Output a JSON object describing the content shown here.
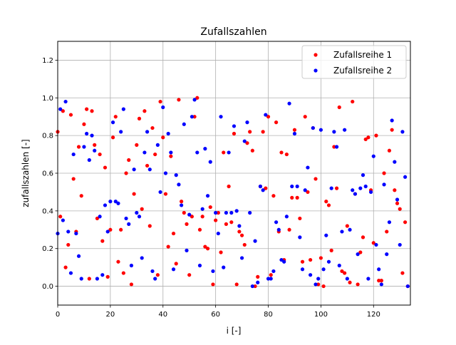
{
  "chart_data": {
    "type": "scatter",
    "title": "Zufallszahlen",
    "xlabel": "i [-]",
    "ylabel": "zufallszahlen [-]",
    "xlim": [
      0,
      134
    ],
    "ylim": [
      -0.1,
      1.3
    ],
    "xticks": [
      0,
      20,
      40,
      60,
      80,
      100,
      120
    ],
    "yticks": [
      0.0,
      0.2,
      0.4,
      0.6,
      0.8,
      1.0,
      1.2
    ],
    "xtick_labels": [
      "0",
      "20",
      "40",
      "60",
      "80",
      "100",
      "120"
    ],
    "ytick_labels": [
      "0.0",
      "0.2",
      "0.4",
      "0.6",
      "0.8",
      "1.0",
      "1.2"
    ],
    "grid": true,
    "legend_position": "top-right",
    "series": [
      {
        "name": "Zufallsreihe 1",
        "color": "#ff0000",
        "x": [
          0,
          1,
          2,
          3,
          4,
          5,
          6,
          7,
          8,
          9,
          10,
          11,
          12,
          13,
          14,
          15,
          16,
          17,
          18,
          19,
          20,
          21,
          22,
          23,
          24,
          25,
          26,
          27,
          28,
          29,
          30,
          31,
          32,
          33,
          34,
          35,
          36,
          37,
          38,
          39,
          40,
          41,
          42,
          43,
          44,
          45,
          46,
          47,
          48,
          49,
          50,
          51,
          52,
          53,
          54,
          55,
          56,
          57,
          58,
          59,
          60,
          61,
          62,
          63,
          64,
          65,
          66,
          67,
          68,
          69,
          70,
          71,
          72,
          73,
          74,
          75,
          76,
          77,
          78,
          79,
          80,
          81,
          82,
          83,
          84,
          85,
          86,
          87,
          88,
          89,
          90,
          91,
          92,
          93,
          94,
          95,
          96,
          97,
          98,
          99,
          100,
          101,
          102,
          103,
          104,
          105,
          106,
          107,
          108,
          109,
          110,
          111,
          112,
          113,
          114,
          115,
          116,
          117,
          118,
          119,
          120,
          121,
          122,
          123,
          124,
          125,
          126,
          127,
          128,
          129,
          130,
          131,
          132,
          133
        ],
        "y": [
          0.82,
          0.37,
          0.93,
          0.1,
          0.22,
          0.91,
          0.57,
          0.29,
          0.74,
          0.48,
          0.86,
          0.94,
          0.04,
          0.93,
          0.75,
          0.36,
          0.7,
          0.24,
          0.63,
          0.05,
          0.3,
          0.79,
          0.9,
          0.13,
          0.3,
          0.07,
          0.6,
          0.67,
          0.01,
          0.49,
          0.75,
          0.89,
          0.41,
          0.93,
          0.64,
          0.32,
          0.84,
          0.7,
          0.06,
          0.98,
          0.79,
          0.49,
          0.21,
          0.69,
          0.28,
          0.12,
          0.99,
          0.45,
          0.39,
          0.33,
          0.06,
          0.37,
          0.9,
          1.0,
          0.3,
          0.37,
          0.21,
          0.2,
          0.42,
          0.01,
          0.35,
          0.39,
          0.18,
          0.71,
          0.33,
          0.53,
          0.34,
          0.81,
          0.01,
          0.29,
          0.27,
          0.22,
          0.76,
          0.82,
          0.72,
          0.0,
          0.05,
          0.53,
          0.82,
          0.52,
          0.9,
          0.06,
          0.48,
          0.87,
          0.29,
          0.71,
          0.14,
          0.7,
          0.3,
          0.47,
          0.83,
          0.47,
          0.36,
          0.13,
          0.9,
          0.5,
          0.14,
          0.84,
          0.57,
          0.01,
          0.15,
          0.0,
          0.45,
          0.43,
          0.19,
          0.74,
          0.52,
          0.95,
          0.08,
          0.07,
          0.32,
          0.02,
          0.98,
          0.49,
          0.01,
          0.18,
          0.26,
          0.78,
          0.79,
          0.51,
          0.23,
          0.8,
          0.03,
          0.03,
          0.6,
          0.29,
          0.72,
          0.83,
          0.51,
          0.44,
          0.41,
          0.07,
          0.34,
          0.0
        ]
      },
      {
        "name": "Zufallsreihe 2",
        "color": "#0000ff",
        "x": [
          0,
          1,
          2,
          3,
          4,
          5,
          6,
          7,
          8,
          9,
          10,
          11,
          12,
          13,
          14,
          15,
          16,
          17,
          18,
          19,
          20,
          21,
          22,
          23,
          24,
          25,
          26,
          27,
          28,
          29,
          30,
          31,
          32,
          33,
          34,
          35,
          36,
          37,
          38,
          39,
          40,
          41,
          42,
          43,
          44,
          45,
          46,
          47,
          48,
          49,
          50,
          51,
          52,
          53,
          54,
          55,
          56,
          57,
          58,
          59,
          60,
          61,
          62,
          63,
          64,
          65,
          66,
          67,
          68,
          69,
          70,
          71,
          72,
          73,
          74,
          75,
          76,
          77,
          78,
          79,
          80,
          81,
          82,
          83,
          84,
          85,
          86,
          87,
          88,
          89,
          90,
          91,
          92,
          93,
          94,
          95,
          96,
          97,
          98,
          99,
          100,
          101,
          102,
          103,
          104,
          105,
          106,
          107,
          108,
          109,
          110,
          111,
          112,
          113,
          114,
          115,
          116,
          117,
          118,
          119,
          120,
          121,
          122,
          123,
          124,
          125,
          126,
          127,
          128,
          129,
          130,
          131,
          132,
          133
        ],
        "y": [
          0.28,
          0.94,
          0.35,
          0.98,
          0.29,
          0.07,
          0.7,
          0.28,
          0.16,
          0.04,
          0.74,
          0.81,
          0.67,
          0.8,
          0.72,
          0.04,
          0.37,
          0.06,
          0.43,
          0.29,
          0.45,
          0.87,
          0.45,
          0.44,
          0.82,
          0.94,
          0.36,
          0.33,
          0.11,
          0.62,
          0.39,
          0.37,
          0.15,
          0.71,
          0.82,
          0.62,
          0.08,
          0.04,
          0.75,
          0.5,
          0.95,
          0.6,
          0.81,
          0.71,
          0.09,
          0.59,
          0.54,
          0.43,
          0.86,
          0.19,
          0.38,
          0.9,
          0.99,
          0.71,
          0.11,
          0.41,
          0.73,
          0.48,
          0.66,
          0.08,
          0.39,
          0.28,
          0.9,
          0.1,
          0.39,
          0.71,
          0.39,
          0.85,
          0.4,
          0.32,
          0.15,
          0.77,
          0.87,
          0.39,
          0.0,
          0.24,
          0.02,
          0.53,
          0.51,
          0.91,
          0.04,
          0.04,
          0.08,
          0.34,
          0.3,
          0.14,
          0.13,
          0.37,
          0.97,
          0.53,
          0.81,
          0.53,
          0.26,
          0.09,
          0.51,
          0.63,
          0.06,
          0.84,
          0.01,
          0.04,
          0.83,
          0.09,
          0.27,
          0.13,
          0.52,
          0.82,
          0.74,
          0.11,
          0.29,
          0.83,
          0.04,
          0.3,
          0.51,
          0.49,
          0.17,
          0.52,
          0.59,
          0.53,
          0.04,
          0.5,
          0.69,
          0.22,
          0.09,
          0.01,
          0.54,
          0.17,
          0.34,
          0.88,
          0.66,
          0.46,
          0.22,
          0.82,
          0.58,
          0.0
        ]
      }
    ]
  }
}
